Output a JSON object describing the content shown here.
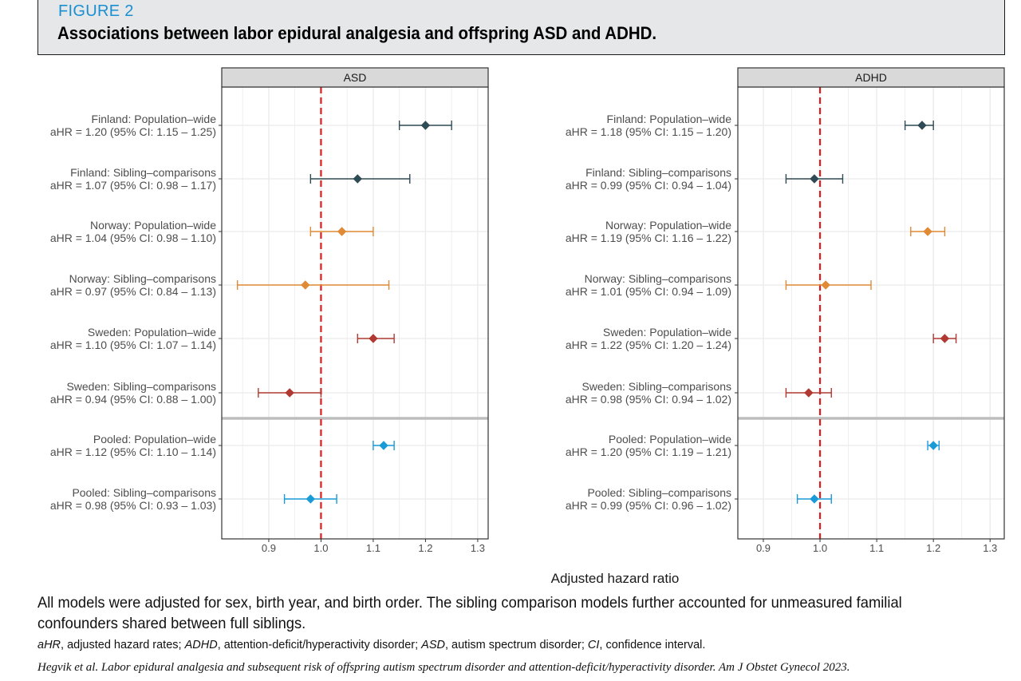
{
  "header": {
    "figure_label": "FIGURE 2",
    "title": "Associations between labor epidural analgesia and offspring ASD and ADHD."
  },
  "caption": {
    "main": "All models were adjusted for sex, birth year, and birth order. The sibling comparison models further accounted for unmeasured familial confounders shared between full siblings.",
    "abbreviations": [
      {
        "term": "aHR",
        "definition": ", adjusted hazard rates; "
      },
      {
        "term": "ADHD",
        "definition": ", attention-deficit/hyperactivity disorder; "
      },
      {
        "term": "ASD",
        "definition": ", autism spectrum disorder; "
      },
      {
        "term": "CI",
        "definition": ", confidence interval."
      }
    ],
    "citation": "Hegvik et al. Labor epidural analgesia and subsequent risk of offspring autism spectrum disorder and attention-deficit/hyperactivity disorder. Am J Obstet Gynecol 2023."
  },
  "colors": {
    "finland": "#2f4b55",
    "norway": "#e08a35",
    "sweden": "#b03a33",
    "pooled": "#1a9bd7",
    "reference_line": "#e01b1b",
    "panel_strip": "#d9d9d9",
    "grid": "#ebebeb",
    "separator": "#bdbdbd"
  },
  "chart_data": {
    "type": "forest",
    "xlabel": "Adjusted hazard ratio",
    "reference_value": 1.0,
    "xticks": [
      0.9,
      1.0,
      1.1,
      1.2,
      1.3
    ],
    "xtick_labels": [
      "0.9",
      "1.0",
      "1.1",
      "1.2",
      "1.3"
    ],
    "separator_after_row": 6,
    "panels": [
      {
        "title": "ASD",
        "xlim": [
          0.81,
          1.32
        ],
        "rows": [
          {
            "label": "Finland: Population–wide",
            "stat": "aHR = 1.20 (95% CI: 1.15 – 1.25)",
            "est": 1.2,
            "lo": 1.15,
            "hi": 1.25,
            "color_key": "finland"
          },
          {
            "label": "Finland: Sibling–comparisons",
            "stat": "aHR = 1.07 (95% CI: 0.98 – 1.17)",
            "est": 1.07,
            "lo": 0.98,
            "hi": 1.17,
            "color_key": "finland"
          },
          {
            "label": "Norway: Population–wide",
            "stat": "aHR = 1.04 (95% CI: 0.98 – 1.10)",
            "est": 1.04,
            "lo": 0.98,
            "hi": 1.1,
            "color_key": "norway"
          },
          {
            "label": "Norway: Sibling–comparisons",
            "stat": "aHR = 0.97 (95% CI: 0.84 – 1.13)",
            "est": 0.97,
            "lo": 0.84,
            "hi": 1.13,
            "color_key": "norway"
          },
          {
            "label": "Sweden: Population–wide",
            "stat": "aHR = 1.10 (95% CI: 1.07 – 1.14)",
            "est": 1.1,
            "lo": 1.07,
            "hi": 1.14,
            "color_key": "sweden"
          },
          {
            "label": "Sweden: Sibling–comparisons",
            "stat": "aHR = 0.94 (95% CI: 0.88 – 1.00)",
            "est": 0.94,
            "lo": 0.88,
            "hi": 1.0,
            "color_key": "sweden"
          },
          {
            "label": "Pooled: Population–wide",
            "stat": "aHR = 1.12 (95% CI: 1.10 – 1.14)",
            "est": 1.12,
            "lo": 1.1,
            "hi": 1.14,
            "color_key": "pooled"
          },
          {
            "label": "Pooled: Sibling–comparisons",
            "stat": "aHR = 0.98 (95% CI: 0.93 – 1.03)",
            "est": 0.98,
            "lo": 0.93,
            "hi": 1.03,
            "color_key": "pooled"
          }
        ]
      },
      {
        "title": "ADHD",
        "xlim": [
          0.855,
          1.325
        ],
        "rows": [
          {
            "label": "Finland: Population–wide",
            "stat": "aHR = 1.18 (95% CI: 1.15 – 1.20)",
            "est": 1.18,
            "lo": 1.15,
            "hi": 1.2,
            "color_key": "finland"
          },
          {
            "label": "Finland: Sibling–comparisons",
            "stat": "aHR = 0.99 (95% CI: 0.94 – 1.04)",
            "est": 0.99,
            "lo": 0.94,
            "hi": 1.04,
            "color_key": "finland"
          },
          {
            "label": "Norway: Population–wide",
            "stat": "aHR = 1.19 (95% CI: 1.16 – 1.22)",
            "est": 1.19,
            "lo": 1.16,
            "hi": 1.22,
            "color_key": "norway"
          },
          {
            "label": "Norway: Sibling–comparisons",
            "stat": "aHR = 1.01 (95% CI: 0.94 – 1.09)",
            "est": 1.01,
            "lo": 0.94,
            "hi": 1.09,
            "color_key": "norway"
          },
          {
            "label": "Sweden: Population–wide",
            "stat": "aHR = 1.22 (95% CI: 1.20 – 1.24)",
            "est": 1.22,
            "lo": 1.2,
            "hi": 1.24,
            "color_key": "sweden"
          },
          {
            "label": "Sweden: Sibling–comparisons",
            "stat": "aHR = 0.98 (95% CI: 0.94 – 1.02)",
            "est": 0.98,
            "lo": 0.94,
            "hi": 1.02,
            "color_key": "sweden"
          },
          {
            "label": "Pooled: Population–wide",
            "stat": "aHR = 1.20 (95% CI: 1.19 – 1.21)",
            "est": 1.2,
            "lo": 1.19,
            "hi": 1.21,
            "color_key": "pooled"
          },
          {
            "label": "Pooled: Sibling–comparisons",
            "stat": "aHR = 0.99 (95% CI: 0.96 – 1.02)",
            "est": 0.99,
            "lo": 0.96,
            "hi": 1.02,
            "color_key": "pooled"
          }
        ]
      }
    ]
  }
}
